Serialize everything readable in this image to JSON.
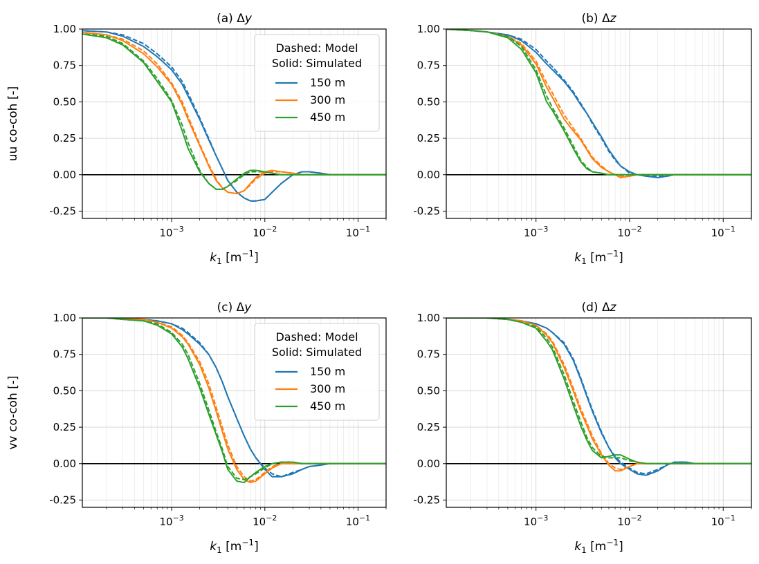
{
  "figure": {
    "legend": {
      "header_lines": [
        "Dashed: Model",
        "Solid: Simulated"
      ],
      "location": "upper-right"
    },
    "series_styles": [
      {
        "name": "150 m",
        "color": "#1f77b4"
      },
      {
        "name": "300 m",
        "color": "#ff7f0e"
      },
      {
        "name": "450 m",
        "color": "#2ca02c"
      }
    ],
    "xlabel_parts": {
      "base": "k",
      "sub": "1",
      "unit_open": " [m",
      "sup": "−1",
      "unit_close": "]"
    },
    "ytick_labels": [
      "1.00",
      "0.75",
      "0.50",
      "0.25",
      "0.00",
      "-0.25"
    ],
    "xtick_labels": [
      {
        "base": "10",
        "exp": "−3"
      },
      {
        "base": "10",
        "exp": "−2"
      },
      {
        "base": "10",
        "exp": "−1"
      }
    ]
  },
  "chart_data": [
    {
      "id": "a",
      "type": "line",
      "title_prefix": "(a) Δ",
      "title_var": "y",
      "ylabel": "uu co-coh [-]",
      "xscale": "log",
      "xlim": [
        0.00011,
        0.2
      ],
      "ylim": [
        -0.3,
        1.0
      ],
      "grid": true,
      "legend": true,
      "x": [
        0.0001,
        0.0002,
        0.0003,
        0.0005,
        0.0007,
        0.001,
        0.0013,
        0.0015,
        0.002,
        0.0025,
        0.003,
        0.0035,
        0.004,
        0.005,
        0.006,
        0.007,
        0.008,
        0.01,
        0.012,
        0.015,
        0.02,
        0.025,
        0.03,
        0.04,
        0.05,
        0.07,
        0.1,
        0.2
      ],
      "series": [
        {
          "name": "150 m",
          "kind": "simulated",
          "values": [
            0.99,
            0.98,
            0.95,
            0.88,
            0.81,
            0.72,
            0.62,
            0.54,
            0.38,
            0.24,
            0.13,
            0.04,
            -0.04,
            -0.12,
            -0.16,
            -0.18,
            -0.18,
            -0.17,
            -0.12,
            -0.06,
            0.0,
            0.02,
            0.02,
            0.01,
            0.0,
            0.0,
            0.0,
            0.0
          ]
        },
        {
          "name": "150 m",
          "kind": "model",
          "values": [
            0.99,
            0.98,
            0.96,
            0.9,
            0.83,
            0.74,
            0.64,
            0.56,
            0.39,
            0.25,
            0.13,
            0.04,
            -0.04,
            -0.12,
            -0.16,
            -0.18,
            -0.18,
            -0.17,
            -0.12,
            -0.06,
            0.0,
            0.02,
            0.02,
            0.01,
            0.0,
            0.0,
            0.0,
            0.0
          ]
        },
        {
          "name": "300 m",
          "kind": "simulated",
          "values": [
            0.98,
            0.96,
            0.92,
            0.83,
            0.74,
            0.62,
            0.48,
            0.38,
            0.2,
            0.06,
            -0.04,
            -0.09,
            -0.12,
            -0.13,
            -0.11,
            -0.06,
            -0.02,
            0.02,
            0.03,
            0.02,
            0.01,
            0.0,
            0.0,
            0.0,
            0.0,
            0.0,
            0.0,
            0.0
          ]
        },
        {
          "name": "300 m",
          "kind": "model",
          "values": [
            0.98,
            0.96,
            0.93,
            0.85,
            0.76,
            0.63,
            0.5,
            0.4,
            0.21,
            0.07,
            -0.03,
            -0.09,
            -0.12,
            -0.13,
            -0.11,
            -0.07,
            -0.03,
            0.01,
            0.02,
            0.02,
            0.01,
            0.0,
            0.0,
            0.0,
            0.0,
            0.0,
            0.0,
            0.0
          ]
        },
        {
          "name": "450 m",
          "kind": "simulated",
          "values": [
            0.97,
            0.94,
            0.89,
            0.77,
            0.64,
            0.5,
            0.3,
            0.18,
            0.02,
            -0.06,
            -0.1,
            -0.1,
            -0.08,
            -0.03,
            0.01,
            0.03,
            0.03,
            0.02,
            0.01,
            0.0,
            0.0,
            0.0,
            0.0,
            0.0,
            0.0,
            0.0,
            0.0,
            0.0
          ]
        },
        {
          "name": "450 m",
          "kind": "model",
          "values": [
            0.97,
            0.95,
            0.9,
            0.78,
            0.66,
            0.51,
            0.34,
            0.22,
            0.03,
            -0.06,
            -0.1,
            -0.1,
            -0.08,
            -0.04,
            0.0,
            0.02,
            0.02,
            0.02,
            0.01,
            0.0,
            0.0,
            0.0,
            0.0,
            0.0,
            0.0,
            0.0,
            0.0,
            0.0
          ]
        }
      ]
    },
    {
      "id": "b",
      "type": "line",
      "title_prefix": "(b) Δ",
      "title_var": "z",
      "ylabel": "",
      "xscale": "log",
      "xlim": [
        0.00011,
        0.2
      ],
      "ylim": [
        -0.3,
        1.0
      ],
      "grid": true,
      "legend": false,
      "x": [
        0.0001,
        0.0002,
        0.0003,
        0.0005,
        0.0007,
        0.001,
        0.0013,
        0.0015,
        0.002,
        0.0025,
        0.003,
        0.0035,
        0.004,
        0.005,
        0.006,
        0.007,
        0.008,
        0.01,
        0.012,
        0.015,
        0.02,
        0.025,
        0.03,
        0.04,
        0.05,
        0.07,
        0.1,
        0.2
      ],
      "series": [
        {
          "name": "150 m",
          "kind": "simulated",
          "values": [
            1.0,
            0.99,
            0.98,
            0.96,
            0.92,
            0.84,
            0.76,
            0.72,
            0.64,
            0.56,
            0.48,
            0.42,
            0.36,
            0.26,
            0.17,
            0.11,
            0.06,
            0.02,
            0.0,
            -0.01,
            -0.02,
            -0.01,
            0.0,
            0.0,
            0.0,
            0.0,
            0.0,
            0.0
          ]
        },
        {
          "name": "150 m",
          "kind": "model",
          "values": [
            1.0,
            0.99,
            0.98,
            0.96,
            0.93,
            0.86,
            0.78,
            0.74,
            0.65,
            0.57,
            0.49,
            0.42,
            0.35,
            0.25,
            0.16,
            0.1,
            0.06,
            0.01,
            0.0,
            -0.01,
            -0.01,
            -0.01,
            0.0,
            0.0,
            0.0,
            0.0,
            0.0,
            0.0
          ]
        },
        {
          "name": "300 m",
          "kind": "simulated",
          "values": [
            1.0,
            0.99,
            0.98,
            0.95,
            0.89,
            0.76,
            0.6,
            0.53,
            0.38,
            0.3,
            0.24,
            0.17,
            0.11,
            0.05,
            0.02,
            0.0,
            -0.02,
            -0.01,
            0.0,
            0.0,
            0.0,
            0.0,
            0.0,
            0.0,
            0.0,
            0.0,
            0.0,
            0.0
          ]
        },
        {
          "name": "300 m",
          "kind": "model",
          "values": [
            1.0,
            0.99,
            0.98,
            0.95,
            0.9,
            0.78,
            0.63,
            0.56,
            0.41,
            0.32,
            0.25,
            0.18,
            0.12,
            0.06,
            0.02,
            0.0,
            -0.01,
            -0.01,
            0.0,
            0.0,
            0.0,
            0.0,
            0.0,
            0.0,
            0.0,
            0.0,
            0.0,
            0.0
          ]
        },
        {
          "name": "450 m",
          "kind": "simulated",
          "values": [
            1.0,
            0.99,
            0.98,
            0.94,
            0.86,
            0.7,
            0.5,
            0.44,
            0.3,
            0.18,
            0.09,
            0.04,
            0.02,
            0.01,
            0.0,
            0.0,
            0.0,
            0.0,
            0.0,
            0.0,
            0.0,
            0.0,
            0.0,
            0.0,
            0.0,
            0.0,
            0.0,
            0.0
          ]
        },
        {
          "name": "450 m",
          "kind": "model",
          "values": [
            1.0,
            0.99,
            0.98,
            0.95,
            0.88,
            0.72,
            0.54,
            0.46,
            0.32,
            0.2,
            0.1,
            0.05,
            0.02,
            0.01,
            0.0,
            0.0,
            0.0,
            0.0,
            0.0,
            0.0,
            0.0,
            0.0,
            0.0,
            0.0,
            0.0,
            0.0,
            0.0,
            0.0
          ]
        }
      ]
    },
    {
      "id": "c",
      "type": "line",
      "title_prefix": "(c) Δ",
      "title_var": "y",
      "ylabel": "vv co-coh [-]",
      "xscale": "log",
      "xlim": [
        0.00011,
        0.2
      ],
      "ylim": [
        -0.3,
        1.0
      ],
      "grid": true,
      "legend": true,
      "x": [
        0.0001,
        0.0002,
        0.0003,
        0.0005,
        0.0007,
        0.001,
        0.0013,
        0.0015,
        0.002,
        0.0025,
        0.003,
        0.0035,
        0.004,
        0.005,
        0.006,
        0.007,
        0.008,
        0.01,
        0.012,
        0.015,
        0.02,
        0.025,
        0.03,
        0.04,
        0.05,
        0.07,
        0.1,
        0.2
      ],
      "series": [
        {
          "name": "150 m",
          "kind": "simulated",
          "values": [
            1.0,
            1.0,
            1.0,
            0.99,
            0.98,
            0.96,
            0.92,
            0.89,
            0.82,
            0.75,
            0.66,
            0.56,
            0.46,
            0.31,
            0.19,
            0.1,
            0.04,
            -0.04,
            -0.09,
            -0.09,
            -0.07,
            -0.04,
            -0.02,
            -0.01,
            0.0,
            0.0,
            0.0,
            0.0
          ]
        },
        {
          "name": "150 m",
          "kind": "model",
          "values": [
            1.0,
            1.0,
            1.0,
            0.99,
            0.98,
            0.96,
            0.93,
            0.9,
            0.83,
            0.75,
            0.66,
            0.56,
            0.46,
            0.31,
            0.19,
            0.1,
            0.04,
            -0.03,
            -0.07,
            -0.09,
            -0.06,
            -0.04,
            -0.02,
            -0.01,
            0.0,
            0.0,
            0.0,
            0.0
          ]
        },
        {
          "name": "300 m",
          "kind": "simulated",
          "values": [
            1.0,
            1.0,
            1.0,
            0.99,
            0.97,
            0.93,
            0.87,
            0.82,
            0.68,
            0.52,
            0.36,
            0.22,
            0.1,
            -0.04,
            -0.11,
            -0.13,
            -0.12,
            -0.07,
            -0.03,
            0.0,
            0.0,
            0.0,
            0.0,
            0.0,
            0.0,
            0.0,
            0.0,
            0.0
          ]
        },
        {
          "name": "300 m",
          "kind": "model",
          "values": [
            1.0,
            1.0,
            1.0,
            0.99,
            0.97,
            0.94,
            0.88,
            0.83,
            0.7,
            0.55,
            0.39,
            0.25,
            0.13,
            -0.02,
            -0.09,
            -0.12,
            -0.11,
            -0.06,
            -0.02,
            0.0,
            0.0,
            0.0,
            0.0,
            0.0,
            0.0,
            0.0,
            0.0,
            0.0
          ]
        },
        {
          "name": "450 m",
          "kind": "simulated",
          "values": [
            1.0,
            1.0,
            0.99,
            0.98,
            0.95,
            0.89,
            0.8,
            0.72,
            0.52,
            0.34,
            0.2,
            0.08,
            -0.04,
            -0.12,
            -0.13,
            -0.09,
            -0.06,
            -0.02,
            0.0,
            0.01,
            0.01,
            0.0,
            0.0,
            0.0,
            0.0,
            0.0,
            0.0,
            0.0
          ]
        },
        {
          "name": "450 m",
          "kind": "model",
          "values": [
            1.0,
            1.0,
            0.99,
            0.98,
            0.96,
            0.9,
            0.82,
            0.75,
            0.55,
            0.37,
            0.22,
            0.1,
            -0.02,
            -0.1,
            -0.11,
            -0.09,
            -0.07,
            -0.03,
            0.0,
            0.01,
            0.01,
            0.0,
            0.0,
            0.0,
            0.0,
            0.0,
            0.0,
            0.0
          ]
        }
      ]
    },
    {
      "id": "d",
      "type": "line",
      "title_prefix": "(d) Δ",
      "title_var": "z",
      "ylabel": "",
      "xscale": "log",
      "xlim": [
        0.00011,
        0.2
      ],
      "ylim": [
        -0.3,
        1.0
      ],
      "grid": true,
      "legend": false,
      "x": [
        0.0001,
        0.0002,
        0.0003,
        0.0005,
        0.0007,
        0.001,
        0.0013,
        0.0015,
        0.002,
        0.0025,
        0.003,
        0.0035,
        0.004,
        0.005,
        0.006,
        0.007,
        0.008,
        0.01,
        0.012,
        0.015,
        0.02,
        0.025,
        0.03,
        0.04,
        0.05,
        0.07,
        0.1,
        0.2
      ],
      "series": [
        {
          "name": "150 m",
          "kind": "simulated",
          "values": [
            1.0,
            1.0,
            1.0,
            0.99,
            0.98,
            0.96,
            0.93,
            0.9,
            0.82,
            0.71,
            0.58,
            0.46,
            0.36,
            0.21,
            0.11,
            0.04,
            0.0,
            -0.04,
            -0.07,
            -0.08,
            -0.05,
            -0.01,
            0.01,
            0.01,
            0.0,
            0.0,
            0.0,
            0.0
          ]
        },
        {
          "name": "150 m",
          "kind": "model",
          "values": [
            1.0,
            1.0,
            1.0,
            0.99,
            0.98,
            0.96,
            0.93,
            0.9,
            0.83,
            0.72,
            0.59,
            0.47,
            0.37,
            0.22,
            0.11,
            0.05,
            0.01,
            -0.03,
            -0.06,
            -0.07,
            -0.04,
            -0.01,
            0.01,
            0.01,
            0.0,
            0.0,
            0.0,
            0.0
          ]
        },
        {
          "name": "300 m",
          "kind": "simulated",
          "values": [
            1.0,
            1.0,
            1.0,
            0.99,
            0.98,
            0.95,
            0.88,
            0.83,
            0.66,
            0.5,
            0.36,
            0.26,
            0.17,
            0.06,
            -0.01,
            -0.05,
            -0.05,
            -0.02,
            0.0,
            0.0,
            0.0,
            0.0,
            0.0,
            0.0,
            0.0,
            0.0,
            0.0,
            0.0
          ]
        },
        {
          "name": "300 m",
          "kind": "model",
          "values": [
            1.0,
            1.0,
            1.0,
            0.99,
            0.98,
            0.95,
            0.89,
            0.84,
            0.68,
            0.52,
            0.38,
            0.28,
            0.19,
            0.07,
            0.0,
            -0.03,
            -0.04,
            -0.02,
            0.0,
            0.0,
            0.0,
            0.0,
            0.0,
            0.0,
            0.0,
            0.0,
            0.0,
            0.0
          ]
        },
        {
          "name": "450 m",
          "kind": "simulated",
          "values": [
            1.0,
            1.0,
            1.0,
            0.99,
            0.97,
            0.93,
            0.84,
            0.78,
            0.58,
            0.4,
            0.26,
            0.16,
            0.09,
            0.04,
            0.05,
            0.06,
            0.06,
            0.03,
            0.01,
            0.0,
            0.0,
            0.0,
            0.0,
            0.0,
            0.0,
            0.0,
            0.0,
            0.0
          ]
        },
        {
          "name": "450 m",
          "kind": "model",
          "values": [
            1.0,
            1.0,
            1.0,
            0.99,
            0.97,
            0.94,
            0.86,
            0.8,
            0.61,
            0.43,
            0.29,
            0.18,
            0.11,
            0.05,
            0.04,
            0.04,
            0.04,
            0.02,
            0.01,
            0.0,
            0.0,
            0.0,
            0.0,
            0.0,
            0.0,
            0.0,
            0.0,
            0.0
          ]
        }
      ]
    }
  ]
}
